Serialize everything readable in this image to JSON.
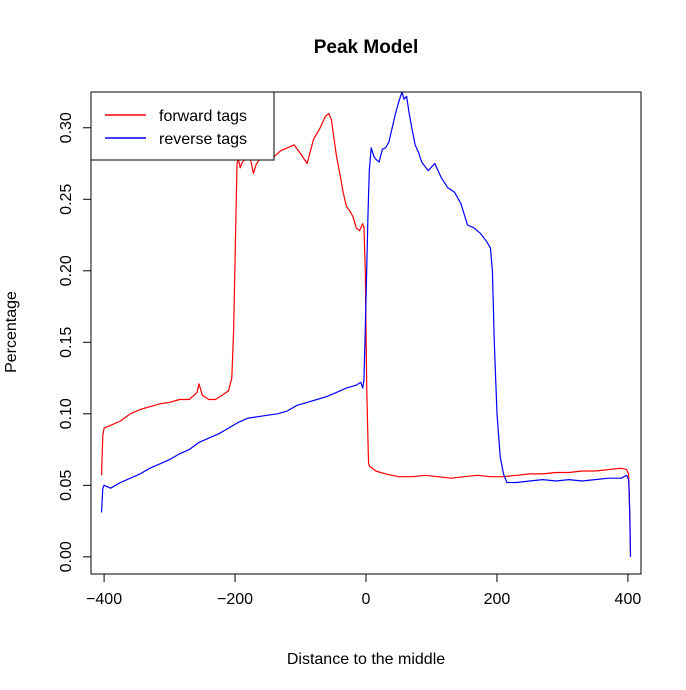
{
  "chart_data": {
    "type": "line",
    "title": "Peak Model",
    "xlabel": "Distance to the middle",
    "ylabel": "Percentage",
    "xlim": [
      -420,
      420
    ],
    "ylim": [
      -0.012,
      0.325
    ],
    "xticks": [
      -400,
      -200,
      0,
      200,
      400
    ],
    "yticks": [
      0.0,
      0.05,
      0.1,
      0.15,
      0.2,
      0.25,
      0.3
    ],
    "xtick_labels": [
      "−400",
      "−200",
      "0",
      "200",
      "400"
    ],
    "ytick_labels": [
      "0.00",
      "0.05",
      "0.10",
      "0.15",
      "0.20",
      "0.25",
      "0.30"
    ],
    "legend": {
      "position": "top-left"
    },
    "grid": false,
    "series": [
      {
        "name": "forward tags",
        "color": "#ff0000",
        "x": [
          -404,
          -402,
          -400,
          -390,
          -375,
          -360,
          -345,
          -330,
          -315,
          -300,
          -285,
          -270,
          -258,
          -255,
          -250,
          -240,
          -230,
          -220,
          -210,
          -205,
          -202,
          -199,
          -197,
          -195,
          -192,
          -190,
          -185,
          -180,
          -175,
          -172,
          -168,
          -160,
          -150,
          -140,
          -130,
          -120,
          -110,
          -100,
          -90,
          -80,
          -70,
          -62,
          -57,
          -53,
          -50,
          -45,
          -40,
          -35,
          -30,
          -25,
          -20,
          -15,
          -10,
          -5,
          -3,
          -1,
          1,
          3,
          4,
          6,
          10,
          15,
          30,
          50,
          70,
          90,
          110,
          130,
          150,
          170,
          190,
          210,
          230,
          250,
          270,
          290,
          310,
          330,
          350,
          370,
          390,
          398,
          401,
          402,
          403,
          404
        ],
        "y": [
          0.057,
          0.085,
          0.09,
          0.092,
          0.095,
          0.1,
          0.103,
          0.105,
          0.107,
          0.108,
          0.11,
          0.11,
          0.115,
          0.121,
          0.113,
          0.11,
          0.11,
          0.113,
          0.116,
          0.125,
          0.16,
          0.23,
          0.275,
          0.278,
          0.272,
          0.275,
          0.278,
          0.284,
          0.275,
          0.268,
          0.274,
          0.28,
          0.278,
          0.28,
          0.284,
          0.286,
          0.288,
          0.282,
          0.275,
          0.292,
          0.3,
          0.308,
          0.31,
          0.306,
          0.296,
          0.28,
          0.268,
          0.255,
          0.245,
          0.242,
          0.238,
          0.23,
          0.228,
          0.233,
          0.23,
          0.2,
          0.12,
          0.08,
          0.065,
          0.063,
          0.062,
          0.06,
          0.058,
          0.056,
          0.056,
          0.057,
          0.056,
          0.055,
          0.056,
          0.057,
          0.056,
          0.056,
          0.057,
          0.058,
          0.058,
          0.059,
          0.059,
          0.06,
          0.06,
          0.061,
          0.062,
          0.061,
          0.058,
          0.045,
          0.025,
          0.0
        ]
      },
      {
        "name": "reverse tags",
        "color": "#0000ff",
        "x": [
          -404,
          -402,
          -400,
          -390,
          -375,
          -360,
          -345,
          -330,
          -315,
          -300,
          -285,
          -270,
          -255,
          -240,
          -225,
          -210,
          -195,
          -180,
          -165,
          -150,
          -135,
          -120,
          -105,
          -90,
          -75,
          -60,
          -45,
          -30,
          -15,
          -8,
          -5,
          -3,
          -1,
          1,
          3,
          5,
          8,
          12,
          15,
          20,
          25,
          30,
          35,
          40,
          45,
          50,
          55,
          58,
          62,
          66,
          70,
          75,
          80,
          85,
          95,
          105,
          115,
          125,
          135,
          145,
          155,
          165,
          175,
          185,
          190,
          193,
          196,
          200,
          205,
          210,
          215,
          230,
          250,
          270,
          290,
          310,
          330,
          350,
          370,
          390,
          398,
          401,
          402,
          403,
          404
        ],
        "y": [
          0.031,
          0.048,
          0.05,
          0.048,
          0.052,
          0.055,
          0.058,
          0.062,
          0.065,
          0.068,
          0.072,
          0.075,
          0.08,
          0.083,
          0.086,
          0.09,
          0.094,
          0.097,
          0.098,
          0.099,
          0.1,
          0.102,
          0.106,
          0.108,
          0.11,
          0.112,
          0.115,
          0.118,
          0.12,
          0.122,
          0.118,
          0.124,
          0.16,
          0.2,
          0.24,
          0.27,
          0.286,
          0.28,
          0.278,
          0.276,
          0.285,
          0.286,
          0.29,
          0.3,
          0.31,
          0.318,
          0.325,
          0.32,
          0.322,
          0.31,
          0.3,
          0.288,
          0.283,
          0.276,
          0.27,
          0.275,
          0.265,
          0.258,
          0.255,
          0.247,
          0.232,
          0.23,
          0.226,
          0.22,
          0.216,
          0.2,
          0.15,
          0.1,
          0.07,
          0.058,
          0.052,
          0.052,
          0.053,
          0.054,
          0.053,
          0.054,
          0.053,
          0.054,
          0.055,
          0.055,
          0.057,
          0.054,
          0.045,
          0.025,
          0.0
        ]
      }
    ]
  }
}
